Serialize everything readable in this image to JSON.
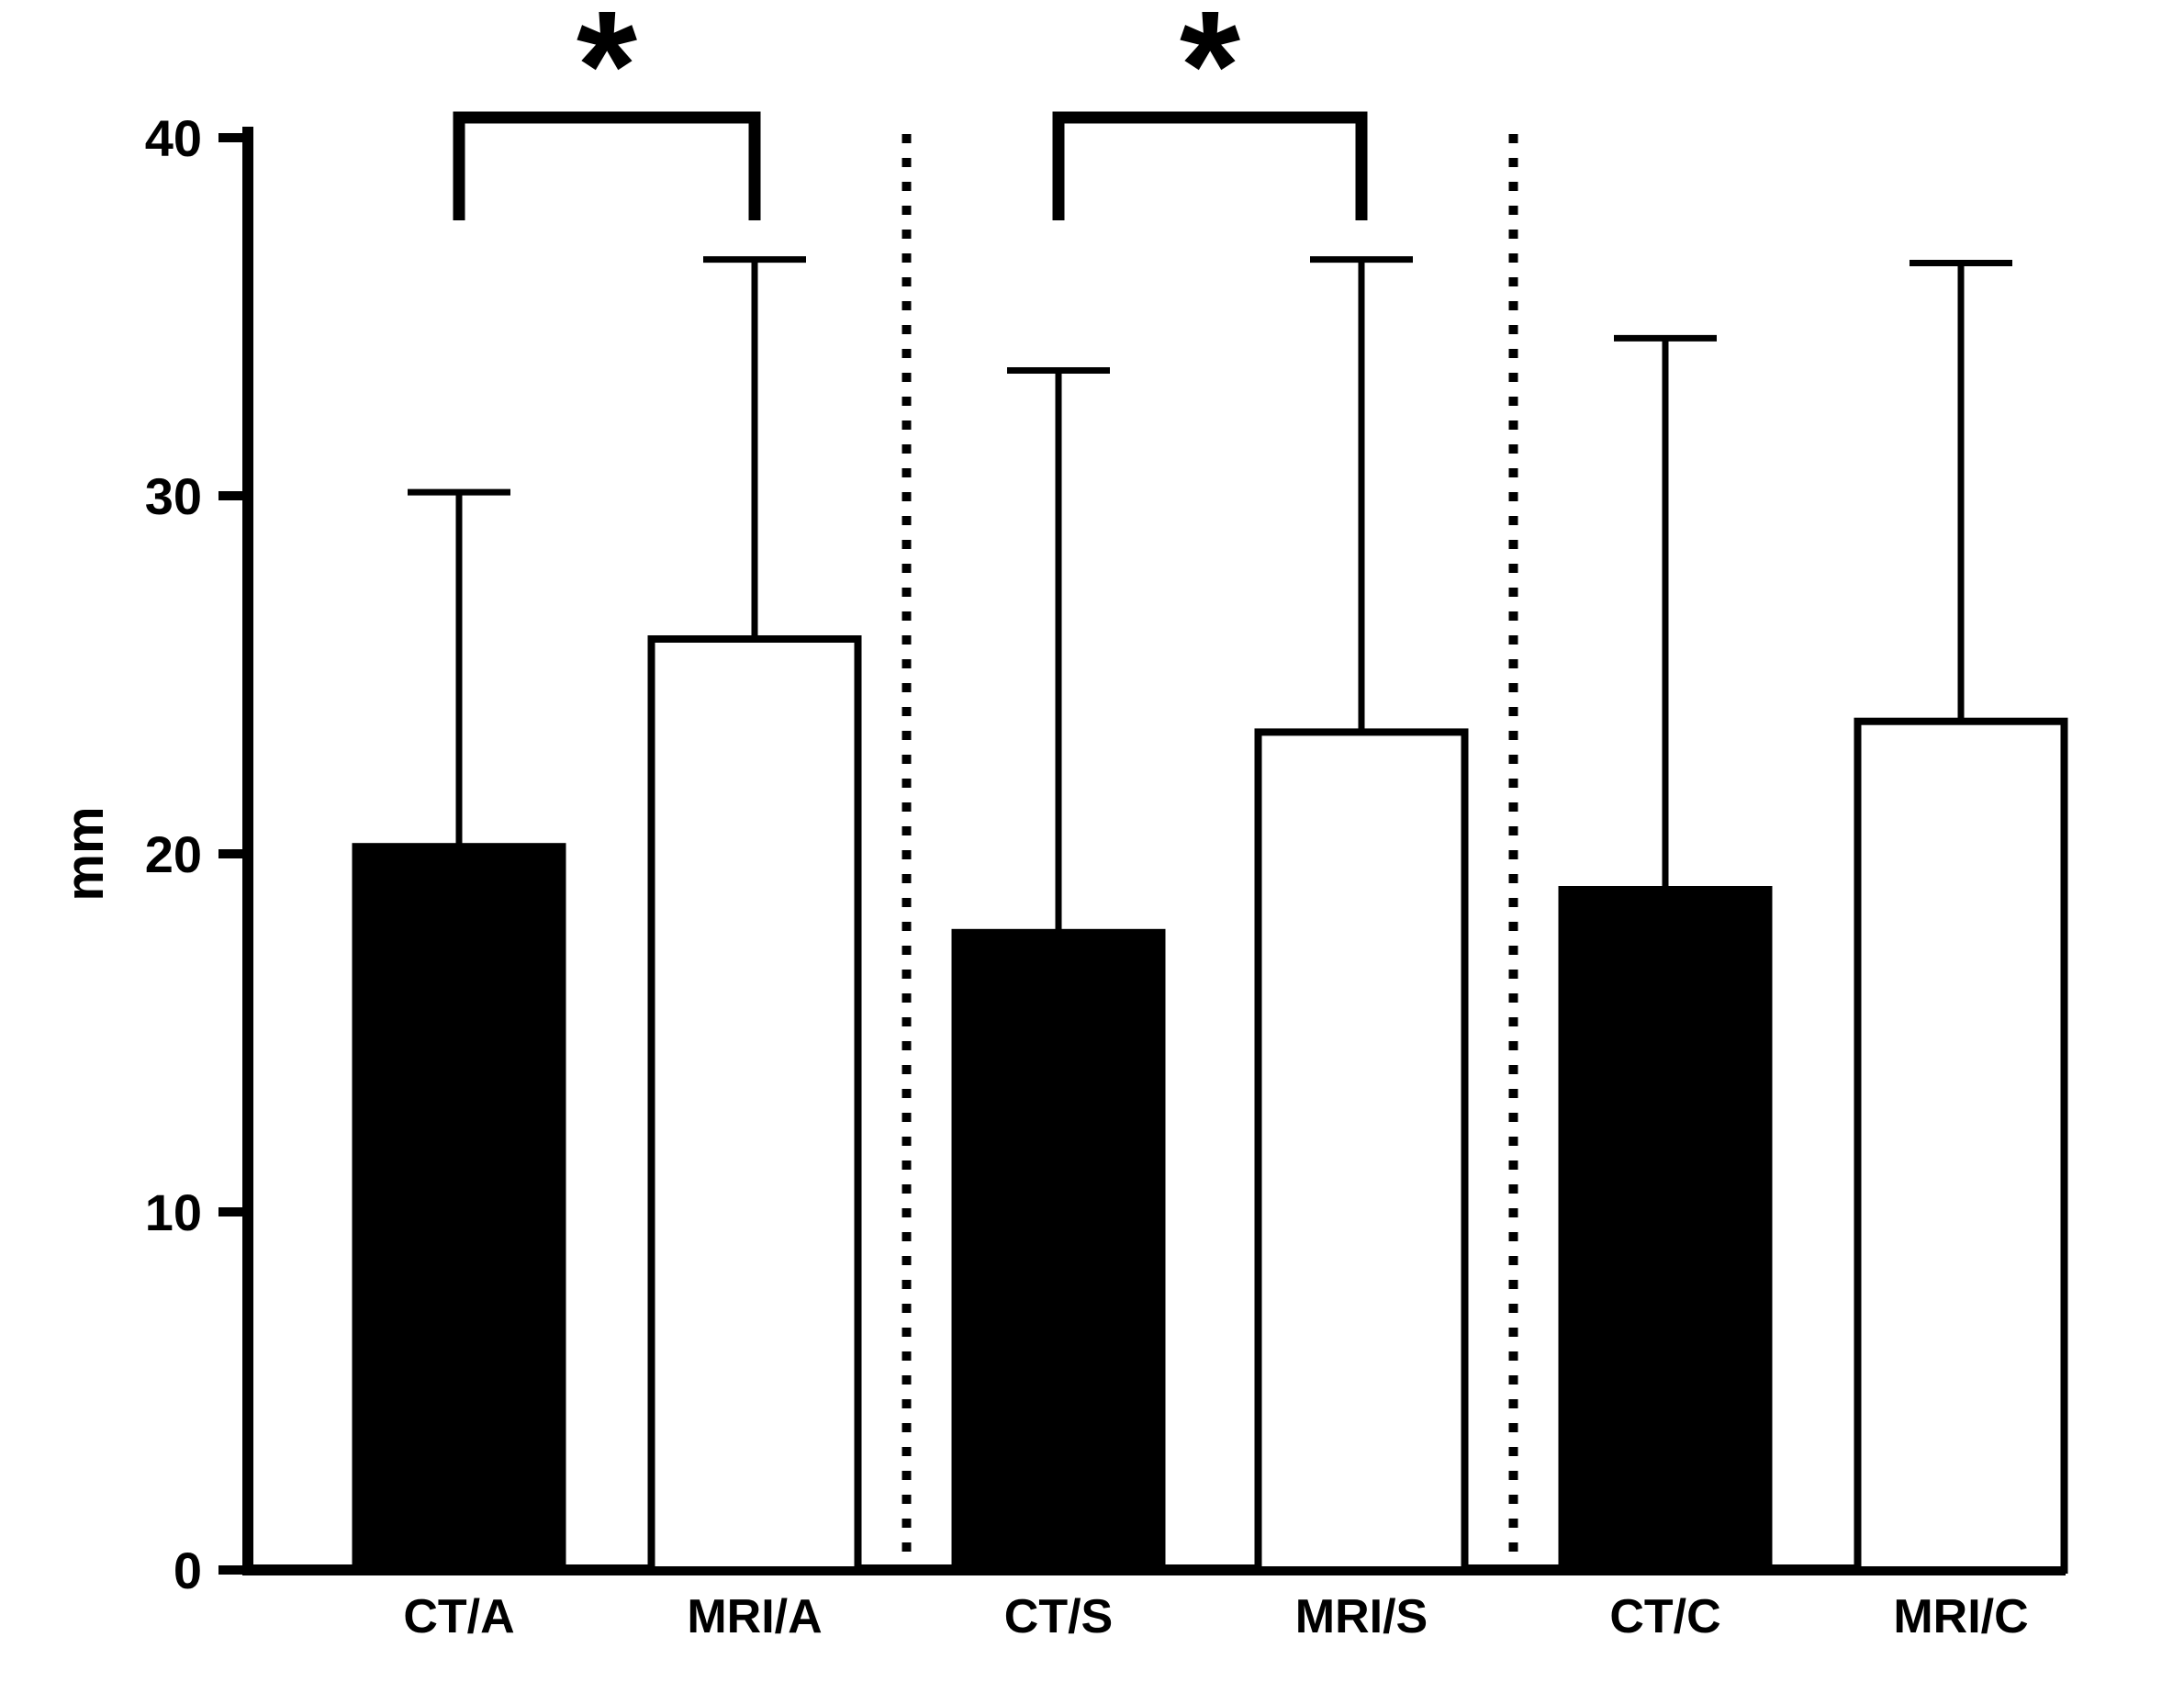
{
  "chart_data": {
    "type": "bar",
    "categories": [
      "CT/A",
      "MRI/A",
      "CT/S",
      "MRI/S",
      "CT/C",
      "MRI/C"
    ],
    "values": [
      20.2,
      26.0,
      17.8,
      23.4,
      19.0,
      23.7
    ],
    "errors_up": [
      9.9,
      10.6,
      15.7,
      13.2,
      15.4,
      12.8
    ],
    "bar_fills": [
      "#000000",
      "#ffffff",
      "#000000",
      "#ffffff",
      "#000000",
      "#ffffff"
    ],
    "bar_stroke": "#000000",
    "title": "",
    "xlabel": "",
    "ylabel": "mm",
    "ylim": [
      0,
      40
    ],
    "yticks": [
      0,
      10,
      20,
      30,
      40
    ],
    "grid": false,
    "legend": "none",
    "separators_after": [
      1,
      3
    ],
    "significance": [
      {
        "from": 0,
        "to": 1,
        "label": "*"
      },
      {
        "from": 2,
        "to": 3,
        "label": "*"
      }
    ]
  }
}
